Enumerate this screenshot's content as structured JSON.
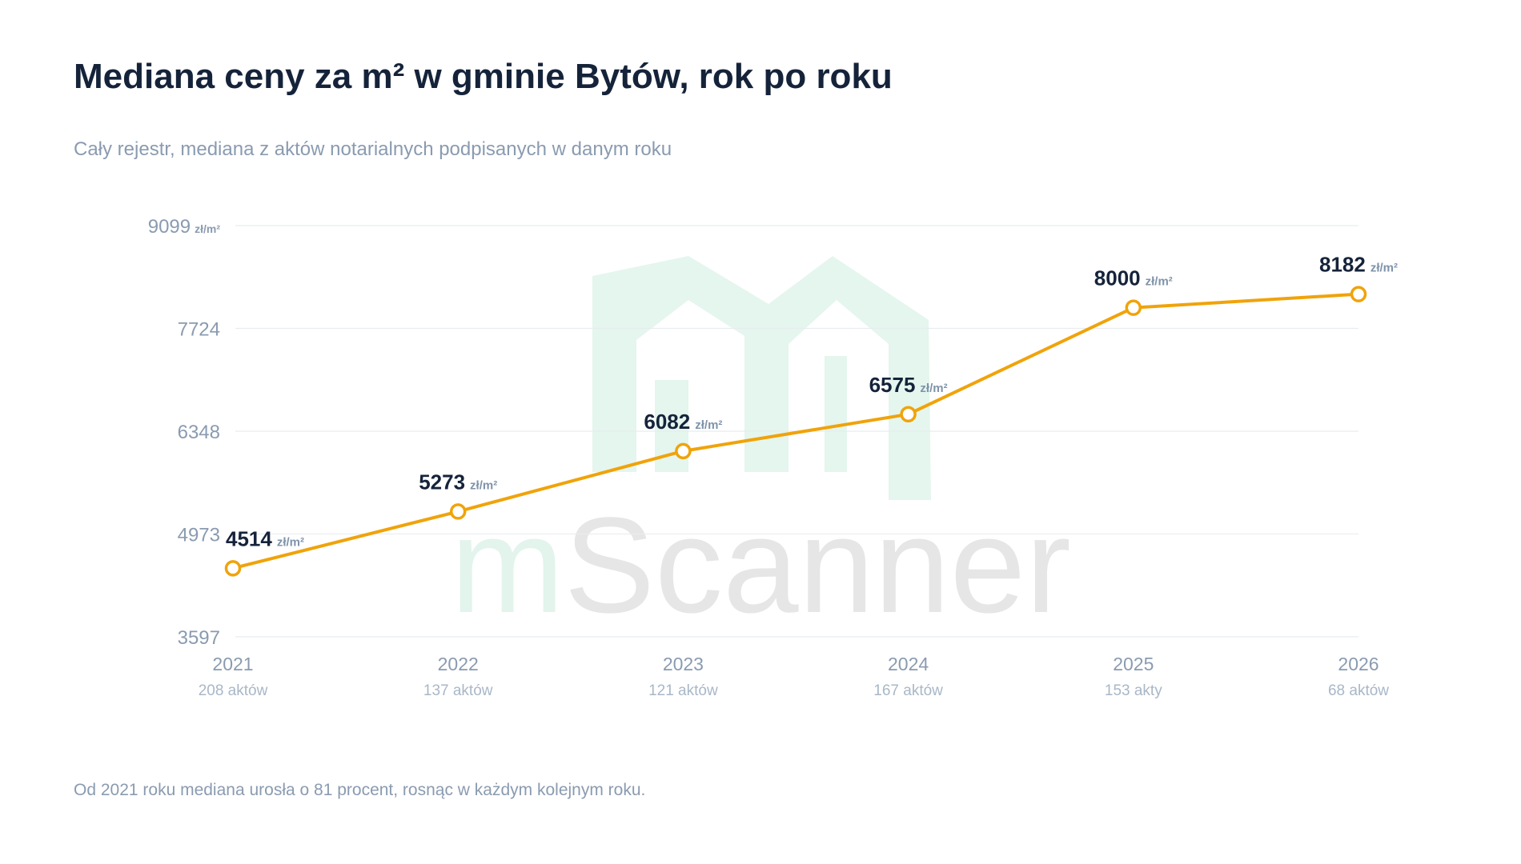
{
  "chart_data": {
    "type": "line",
    "title": "Mediana ceny za m² w gminie Bytów, rok po roku",
    "subtitle": "Cały rejestr, mediana z aktów notarialnych podpisanych w danym roku",
    "footnote": "Od 2021 roku mediana urosła o 81 procent, rosnąc w każdym kolejnym roku.",
    "unit": "zł/m²",
    "watermark": {
      "prefix": "m",
      "name": "Scanner"
    },
    "categories": [
      "2021",
      "2022",
      "2023",
      "2024",
      "2025",
      "2026"
    ],
    "deal_counts": [
      "208 aktów",
      "137 aktów",
      "121 aktów",
      "167 aktów",
      "153 akty",
      "68 aktów"
    ],
    "values": [
      4514,
      5273,
      6082,
      6575,
      8000,
      8182
    ],
    "color": "#f0a30a",
    "ylim": [
      3597,
      9099
    ],
    "yticks": [
      3597,
      4973,
      6348,
      7724,
      9099
    ],
    "grid": true
  }
}
